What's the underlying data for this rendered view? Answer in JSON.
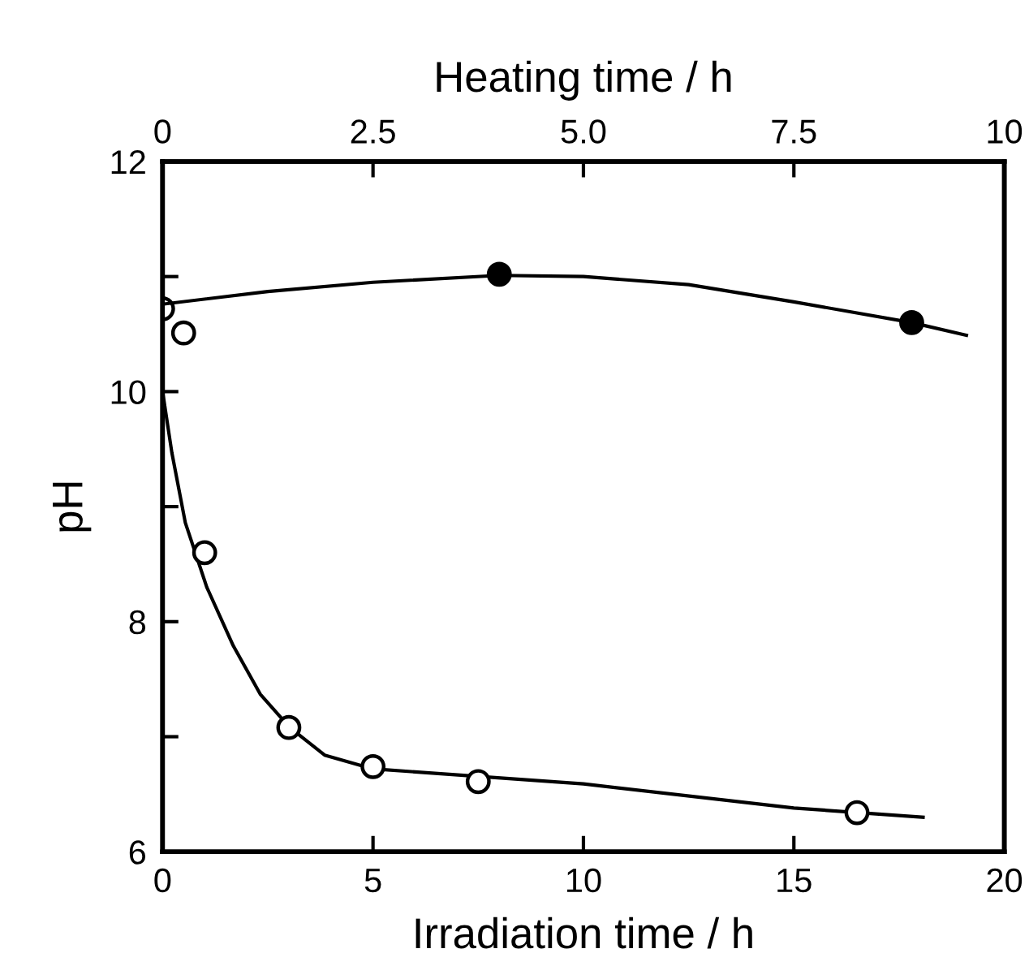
{
  "chart_data": {
    "type": "scatter",
    "xlabel": "Irradiation time / h",
    "ylabel": "pH",
    "x2label": "Heating time / h",
    "xlim": [
      0,
      20
    ],
    "xticks": [
      0,
      5,
      10,
      15,
      20
    ],
    "x2lim": [
      0,
      10
    ],
    "x2ticks": [
      0,
      2.5,
      {
        "value": 5,
        "label": "5.0"
      },
      7.5,
      10
    ],
    "ylim": [
      6,
      12
    ],
    "yticks": [
      6,
      {
        "value": 7,
        "label": null
      },
      8,
      {
        "value": 9,
        "label": null
      },
      10,
      {
        "value": 11,
        "label": null
      },
      12
    ],
    "grid": false,
    "marker": "circle",
    "series": [
      {
        "type": "line",
        "color": "#000000",
        "line_style": "solid",
        "marker": "none",
        "x": [
          0,
          0.22,
          0.54,
          1.05,
          1.68,
          2.32,
          3.02,
          3.85,
          5,
          10,
          15,
          18.07
        ],
        "values": [
          10.0,
          9.47,
          8.86,
          8.3,
          7.79,
          7.37,
          7.08,
          6.84,
          6.72,
          6.59,
          6.38,
          6.3
        ]
      },
      {
        "type": "line",
        "axis": "x2",
        "color": "#000000",
        "line_style": "solid",
        "marker": "none",
        "x": [
          0,
          1.25,
          2.5,
          4,
          5,
          6.25,
          7.5,
          8.9,
          9.55
        ],
        "values": [
          10.76,
          10.87,
          10.95,
          11.01,
          11.0,
          10.93,
          10.78,
          10.6,
          10.49
        ]
      },
      {
        "color": "#ffffff",
        "x": [
          0,
          0.5,
          1,
          3,
          5,
          7.5,
          16.5
        ],
        "values": [
          10.72,
          10.51,
          8.6,
          7.08,
          6.74,
          6.61,
          6.34
        ]
      },
      {
        "axis": "x2",
        "color": "#000000",
        "x": [
          4.0,
          8.9
        ],
        "values": [
          11.02,
          10.6
        ]
      }
    ]
  }
}
